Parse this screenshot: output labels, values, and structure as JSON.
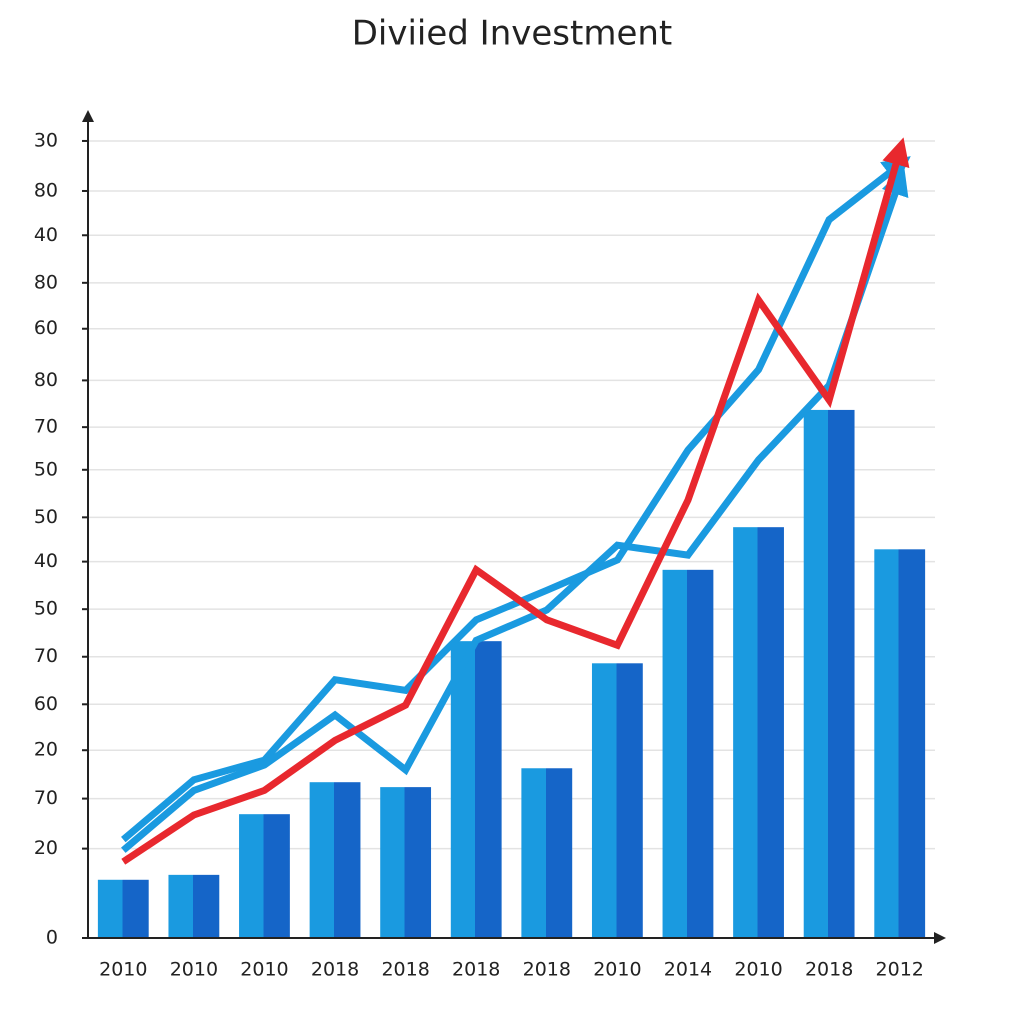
{
  "chart_data": {
    "type": "combo",
    "title": "Diviied Investment",
    "categories": [
      "2010",
      "2010",
      "2010",
      "2018",
      "2018",
      "2018",
      "2018",
      "2010",
      "2014",
      "2010",
      "2018",
      "2012"
    ],
    "ylim": [
      0,
      100
    ],
    "yticks": [
      0,
      {
        "value": 10.9,
        "label": "20"
      },
      {
        "value": 17.0,
        "label": "70"
      },
      {
        "value": 22.9,
        "label": "20"
      },
      {
        "value": 28.5,
        "label": "60"
      },
      {
        "value": 34.3,
        "label": "70"
      },
      {
        "value": 40.1,
        "label": "50"
      },
      {
        "value": 45.9,
        "label": "40"
      },
      {
        "value": 51.3,
        "label": "50"
      },
      {
        "value": 57.1,
        "label": "50"
      },
      {
        "value": 62.3,
        "label": "70"
      },
      {
        "value": 68.0,
        "label": "80"
      },
      {
        "value": 74.3,
        "label": "60"
      },
      {
        "value": 79.9,
        "label": "80"
      },
      {
        "value": 85.7,
        "label": "40"
      },
      {
        "value": 91.1,
        "label": "80"
      },
      {
        "value": 97.2,
        "label": "30"
      }
    ],
    "grid": true,
    "series": [
      {
        "type": "bar",
        "color": "#1a9ae0",
        "values": [
          7.1,
          7.7,
          15.1,
          19.0,
          18.4,
          36.2,
          20.7,
          33.5,
          44.9,
          50.1,
          64.4,
          47.4
        ]
      },
      {
        "type": "line",
        "color": "#1a9ae0",
        "values": [
          12.0,
          19.3,
          21.7,
          31.5,
          30.2,
          38.8,
          42.4,
          46.1,
          59.5,
          69.3,
          87.6,
          94.3
        ]
      },
      {
        "type": "line",
        "color": "#1a9ae0",
        "values": [
          10.7,
          18.0,
          21.1,
          27.2,
          20.5,
          36.3,
          40.0,
          47.9,
          46.7,
          58.3,
          67.4,
          92.4
        ]
      },
      {
        "type": "line",
        "color": "#e8282e",
        "values": [
          9.3,
          15.0,
          18.0,
          24.1,
          28.4,
          44.9,
          38.8,
          35.7,
          53.4,
          77.8,
          65.6,
          96.0
        ]
      }
    ]
  }
}
